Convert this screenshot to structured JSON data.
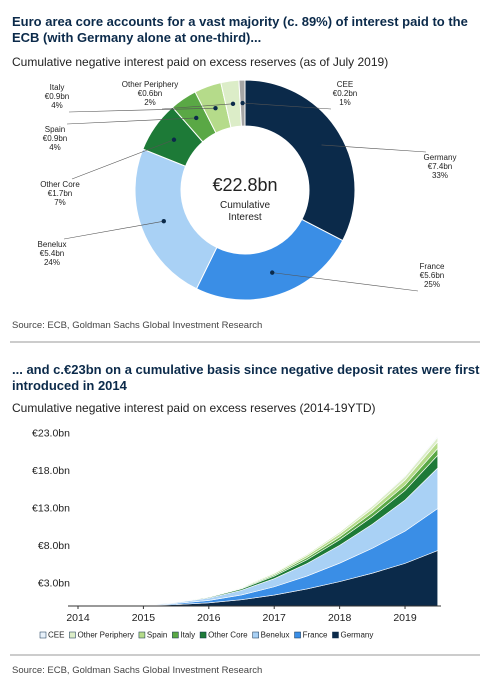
{
  "chart_data": [
    {
      "type": "pie",
      "title": "Euro area core accounts for a vast majority (c. 89%) of interest paid to the ECB (with Germany alone at one-third)...",
      "subtitle": "Cumulative negative interest paid on excess reserves (as of July 2019)",
      "source": "Source: ECB, Goldman Sachs Global Investment Research",
      "center_title": "€22.8bn",
      "center_subtitle": "Cumulative Interest",
      "categories": [
        "Germany",
        "France",
        "Benelux",
        "Other Core",
        "Spain",
        "Italy",
        "Other Periphery",
        "CEE"
      ],
      "values": [
        7.4,
        5.6,
        5.4,
        1.7,
        0.9,
        0.9,
        0.6,
        0.2
      ],
      "value_labels": [
        "€7.4bn",
        "€5.6bn",
        "€5.4bn",
        "€1.7bn",
        "€0.9bn",
        "€0.9bn",
        "€0.6bn",
        "€0.2bn"
      ],
      "share_labels": [
        "33%",
        "25%",
        "24%",
        "7%",
        "4%",
        "4%",
        "2%",
        "1%"
      ],
      "colors": [
        "#0b2a4a",
        "#3a8ee6",
        "#a9d1f5",
        "#1d7a37",
        "#5aa845",
        "#b5db8a",
        "#dcedc8",
        "#a6a6a6"
      ]
    },
    {
      "type": "area",
      "title": "... and c.€23bn on a cumulative basis since negative deposit rates were first introduced in 2014",
      "subtitle": "Cumulative negative interest paid on excess reserves (2014-19YTD)",
      "source": "Source: ECB, Goldman Sachs Global Investment Research",
      "x": [
        2014,
        2014.5,
        2015,
        2015.5,
        2016,
        2016.5,
        2017,
        2017.5,
        2018,
        2018.5,
        2019,
        2019.5
      ],
      "xlim": [
        2014,
        2019.55
      ],
      "xticks": [
        2014,
        2015,
        2016,
        2017,
        2018,
        2019
      ],
      "ylim": [
        0,
        24
      ],
      "yticks": [
        {
          "value": 3,
          "label": "€3.0bn"
        },
        {
          "value": 8,
          "label": "€8.0bn"
        },
        {
          "value": 13,
          "label": "€13.0bn"
        },
        {
          "value": 18,
          "label": "€18.0bn"
        },
        {
          "value": 23,
          "label": "€23.0bn"
        }
      ],
      "grid": false,
      "series": [
        {
          "name": "CEE",
          "color": "#e8f1fa",
          "values": [
            0,
            0,
            0,
            0.01,
            0.01,
            0.02,
            0.04,
            0.06,
            0.09,
            0.12,
            0.15,
            0.2
          ]
        },
        {
          "name": "Other Periphery",
          "color": "#dcedc8",
          "values": [
            0,
            0,
            0.01,
            0.02,
            0.03,
            0.07,
            0.12,
            0.18,
            0.26,
            0.36,
            0.46,
            0.6
          ]
        },
        {
          "name": "Spain",
          "color": "#b5db8a",
          "values": [
            0,
            0,
            0.01,
            0.02,
            0.05,
            0.1,
            0.18,
            0.28,
            0.39,
            0.53,
            0.69,
            0.9
          ]
        },
        {
          "name": "Italy",
          "color": "#5aa845",
          "values": [
            0,
            0,
            0.01,
            0.02,
            0.05,
            0.1,
            0.18,
            0.28,
            0.39,
            0.53,
            0.69,
            0.9
          ]
        },
        {
          "name": "Other Core",
          "color": "#1d7a37",
          "values": [
            0,
            0,
            0.01,
            0.04,
            0.1,
            0.19,
            0.34,
            0.52,
            0.75,
            1.01,
            1.3,
            1.7
          ]
        },
        {
          "name": "Benelux",
          "color": "#a9d1f5",
          "values": [
            0,
            0.01,
            0.05,
            0.14,
            0.31,
            0.62,
            1.07,
            1.66,
            2.37,
            3.2,
            4.14,
            5.4
          ]
        },
        {
          "name": "France",
          "color": "#3a8ee6",
          "values": [
            0,
            0.01,
            0.05,
            0.15,
            0.32,
            0.64,
            1.11,
            1.72,
            2.46,
            3.32,
            4.3,
            5.6
          ]
        },
        {
          "name": "Germany",
          "color": "#0b2a4a",
          "values": [
            0,
            0.02,
            0.06,
            0.19,
            0.42,
            0.84,
            1.46,
            2.27,
            3.25,
            4.38,
            5.68,
            7.4
          ]
        }
      ]
    }
  ]
}
